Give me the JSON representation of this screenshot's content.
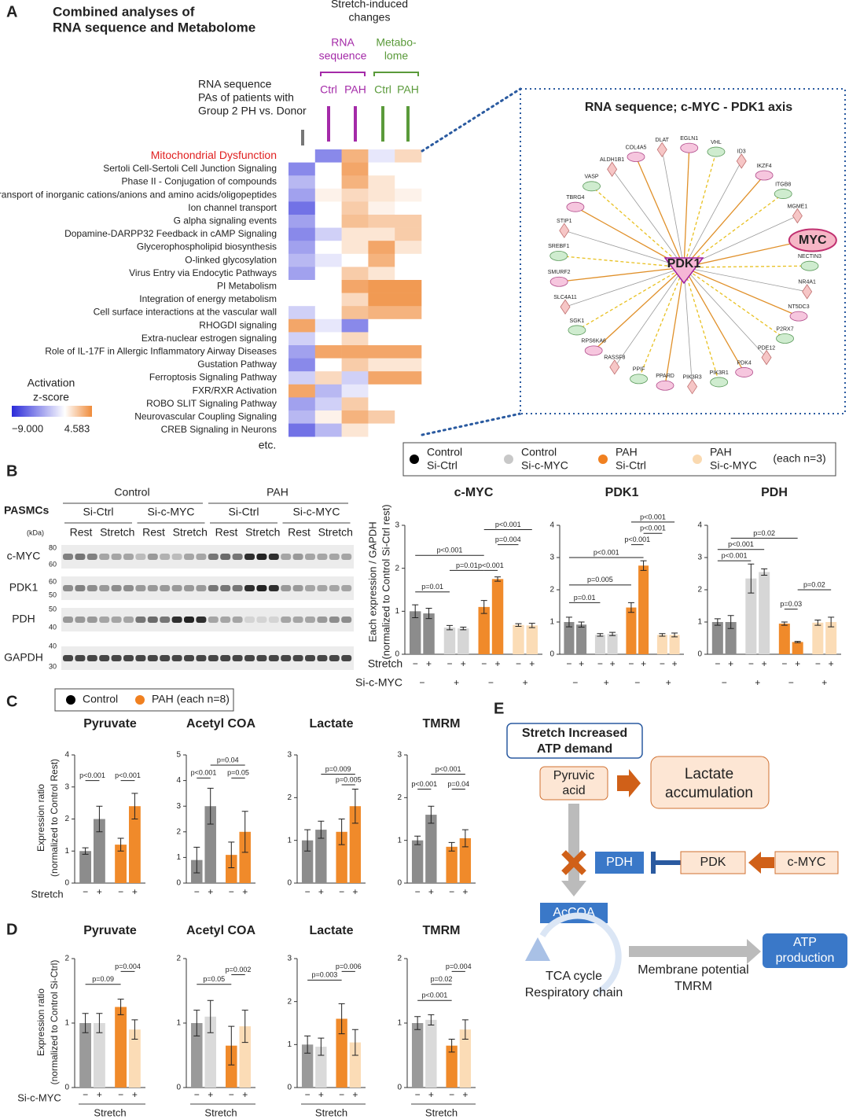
{
  "panel_labels": [
    "A",
    "B",
    "C",
    "D",
    "E"
  ],
  "panel_a": {
    "title": [
      "Combined analyses of",
      "RNA sequence and Metabolome"
    ],
    "header": [
      "Stretch-induced",
      "changes"
    ],
    "groups": [
      {
        "name": [
          "RNA",
          "sequence"
        ],
        "color": "#a42aa8"
      },
      {
        "name": [
          "Metabo-",
          "lome"
        ],
        "color": "#5a9a3a"
      }
    ],
    "columns": [
      "Ctrl",
      "PAH",
      "Ctrl",
      "PAH"
    ],
    "comparison": [
      "RNA sequence",
      "PAs of patients with",
      "Group 2 PH vs. Donor"
    ],
    "rows": [
      "Mitochondrial Dysfunction",
      "Sertoli Cell-Sertoli Cell Junction Signaling",
      "Phase II - Conjugation of compounds",
      "Transport of inorganic cations/anions and amino acids/oligopeptides",
      "Ion channel transport",
      "G alpha signaling events",
      "Dopamine-DARPP32 Feedback in cAMP Signaling",
      "Glycerophospholipid biosynthesis",
      "O-linked glycosylation",
      "Virus Entry via Endocytic Pathways",
      "PI Metabolism",
      "Integration of energy metabolism",
      "Cell surface interactions at the vascular wall",
      "RHOGDI signaling",
      "Extra-nuclear estrogen signaling",
      "Role of IL-17F in Allergic Inflammatory Airway Diseases",
      "Gustation Pathway",
      "Ferroptosis Signaling Pathway",
      "FXR/RXR Activation",
      "ROBO SLIT Signaling Pathway",
      "Neurovascular Coupling Signaling",
      "CREB Signaling in Neurons"
    ],
    "values": [
      [
        0,
        -5,
        3,
        -1,
        1.5
      ],
      [
        -5,
        0,
        3.5,
        0,
        0
      ],
      [
        -3,
        0,
        3,
        1,
        0
      ],
      [
        -4,
        0.5,
        1.5,
        1,
        0.5
      ],
      [
        -6,
        0,
        2,
        0.5,
        0
      ],
      [
        -4,
        0,
        2.5,
        2,
        2
      ],
      [
        -5,
        -2,
        1,
        1,
        2
      ],
      [
        -4,
        0,
        1,
        3.5,
        1
      ],
      [
        -3,
        -1,
        0,
        3,
        0
      ],
      [
        -4,
        0,
        2,
        1,
        0
      ],
      [
        0,
        0,
        3.5,
        4,
        4
      ],
      [
        0,
        0,
        1.5,
        4,
        4
      ],
      [
        -2,
        0,
        2.5,
        3,
        3
      ],
      [
        3.5,
        -1,
        -5,
        0,
        0
      ],
      [
        -2,
        0,
        1.5,
        0,
        0
      ],
      [
        -4,
        3.5,
        3.5,
        3.5,
        3.5
      ],
      [
        -5,
        0,
        2,
        1,
        1
      ],
      [
        -2,
        1.5,
        -2,
        3.5,
        3.5
      ],
      [
        3.5,
        -3,
        -1,
        0,
        0
      ],
      [
        -4,
        -2,
        2,
        0,
        0
      ],
      [
        -3,
        0.5,
        3,
        2,
        0
      ],
      [
        -6,
        -3,
        1,
        0,
        0
      ]
    ],
    "colorscale": {
      "title": [
        "Activation",
        "z-score"
      ],
      "min": {
        "value": -9,
        "label": "−9.000"
      },
      "max": 4.583,
      "colors": [
        "#2b2bd9",
        "#ffffff",
        "#ef8b3a"
      ]
    },
    "footnote": "etc."
  },
  "network": {
    "title": "RNA sequence; c-MYC - PDK1 axis",
    "hub": "PDK1",
    "nodes": [
      "DLAT",
      "EGLN1",
      "VHL",
      "ID3",
      "IKZF4",
      "ITGB8",
      "MGME1",
      "MYC",
      "NECTIN3",
      "NR4A1",
      "NT5DC3",
      "P2RX7",
      "PDE12",
      "PDK4",
      "PIK3R1",
      "PIK3R3",
      "PPARD",
      "PPIF",
      "RASSF8",
      "RPS6KA6",
      "SGK1",
      "SLC4A11",
      "SMURF2",
      "SREBF1",
      "STIP1",
      "TBRG4",
      "VASP",
      "ALDH1B1",
      "COL4A5"
    ]
  },
  "panel_b": {
    "cell": "PASMCs",
    "conditions": [
      "Control",
      "PAH"
    ],
    "sirna_groups": [
      "Si-Ctrl",
      "Si-c-MYC",
      "Si-Ctrl",
      "Si-c-MYC"
    ],
    "treatments": [
      "Rest",
      "Stretch",
      "Rest",
      "Stretch",
      "Rest",
      "Stretch",
      "Rest",
      "Stretch"
    ],
    "kda": "(kDa)",
    "proteins": [
      {
        "name": "c-MYC",
        "markers": [
          80,
          60
        ]
      },
      {
        "name": "PDK1",
        "markers": [
          60,
          50
        ]
      },
      {
        "name": "PDH",
        "markers": [
          50,
          40
        ]
      },
      {
        "name": "GAPDH",
        "markers": [
          40,
          30
        ]
      }
    ],
    "legend": {
      "series": [
        {
          "name": [
            "Control",
            "Si-Ctrl"
          ],
          "color": "#000000"
        },
        {
          "name": [
            "Control",
            "Si-c-MYC"
          ],
          "color": "#c8c8c8"
        },
        {
          "name": [
            "PAH",
            "Si-Ctrl"
          ],
          "color": "#f08020"
        },
        {
          "name": [
            "PAH",
            "Si-c-MYC"
          ],
          "color": "#fad9b0"
        }
      ],
      "note": "(each n=3)"
    },
    "ylabel": [
      "Each expression / GAPDH",
      "(normalized to Control Si-Ctrl rest)"
    ],
    "row_labels": [
      "Stretch",
      "Si-c-MYC"
    ],
    "stretch": [
      "−",
      "+",
      "−",
      "+",
      "−",
      "+",
      "−",
      "+"
    ],
    "sirna": [
      "−",
      "+",
      "−",
      "+"
    ],
    "bar_colors": [
      "#8c8c8c",
      "#8c8c8c",
      "#d6d6d6",
      "#d6d6d6",
      "#f08a2a",
      "#f08a2a",
      "#fbdcb6",
      "#fbdcb6"
    ],
    "charts": [
      {
        "type": "bar",
        "title": "c-MYC",
        "ylim": [
          0,
          3
        ],
        "yticks": [
          0,
          1,
          2,
          3
        ],
        "values": [
          1.0,
          0.95,
          0.62,
          0.6,
          1.1,
          1.75,
          0.68,
          0.67
        ],
        "errors": [
          0.15,
          0.12,
          0.05,
          0.03,
          0.15,
          0.05,
          0.03,
          0.05
        ],
        "p_labels": [
          "p=0.01",
          "p=0.01",
          "p<0.001",
          "p<0.001",
          "p=0.004",
          "p<0.001"
        ]
      },
      {
        "type": "bar",
        "title": "PDK1",
        "ylim": [
          0,
          4
        ],
        "yticks": [
          0,
          1,
          2,
          3,
          4
        ],
        "values": [
          1.0,
          0.92,
          0.6,
          0.63,
          1.45,
          2.75,
          0.6,
          0.6
        ],
        "errors": [
          0.15,
          0.08,
          0.04,
          0.05,
          0.15,
          0.15,
          0.04,
          0.06
        ],
        "p_labels": [
          "p=0.01",
          "p=0.005",
          "p<0.001",
          "p<0.001",
          "p<0.001",
          "p<0.001"
        ]
      },
      {
        "type": "bar",
        "title": "PDH",
        "ylim": [
          0,
          4
        ],
        "yticks": [
          0,
          1,
          2,
          3,
          4
        ],
        "values": [
          1.0,
          1.0,
          2.35,
          2.55,
          0.95,
          0.38,
          0.98,
          1.0
        ],
        "errors": [
          0.1,
          0.2,
          0.45,
          0.1,
          0.05,
          0.02,
          0.08,
          0.15
        ],
        "p_labels": [
          "p<0.001",
          "p<0.001",
          "p=0.02",
          "p=0.03",
          "p=0.02"
        ]
      }
    ]
  },
  "panel_c": {
    "legend": {
      "series": [
        {
          "name": "Control",
          "color": "#000000"
        },
        {
          "name": "PAH (each n=8)",
          "color": "#f08020"
        }
      ]
    },
    "ylabel": [
      "Expression ratio",
      "(normalized to Control Rest)"
    ],
    "row_label": "Stretch",
    "stretch": [
      "−",
      "+",
      "−",
      "+"
    ],
    "bar_colors": [
      "#8c8c8c",
      "#8c8c8c",
      "#f08a2a",
      "#f08a2a"
    ],
    "charts": [
      {
        "type": "bar",
        "title": "Pyruvate",
        "ylim": [
          0,
          4
        ],
        "yticks": [
          0,
          1,
          2,
          3,
          4
        ],
        "values": [
          1.0,
          2.0,
          1.2,
          2.4
        ],
        "errors": [
          0.1,
          0.4,
          0.2,
          0.4
        ],
        "p_labels": [
          "p<0.001",
          "p<0.001"
        ]
      },
      {
        "type": "bar",
        "title": "Acetyl COA",
        "ylim": [
          0,
          5
        ],
        "yticks": [
          0,
          1,
          2,
          3,
          4,
          5
        ],
        "values": [
          0.9,
          3.0,
          1.1,
          2.0
        ],
        "errors": [
          0.5,
          0.7,
          0.5,
          0.8
        ],
        "p_labels": [
          "p<0.001",
          "p=0.04",
          "p=0.05"
        ]
      },
      {
        "type": "bar",
        "title": "Lactate",
        "ylim": [
          0,
          3
        ],
        "yticks": [
          0,
          1,
          2,
          3
        ],
        "values": [
          1.0,
          1.25,
          1.2,
          1.8
        ],
        "errors": [
          0.25,
          0.2,
          0.3,
          0.4
        ],
        "p_labels": [
          "p=0.009",
          "p=0.005"
        ]
      },
      {
        "type": "bar",
        "title": "TMRM",
        "ylim": [
          0,
          3
        ],
        "yticks": [
          0,
          1,
          2,
          3
        ],
        "values": [
          1.0,
          1.6,
          0.85,
          1.05
        ],
        "errors": [
          0.1,
          0.2,
          0.1,
          0.2
        ],
        "p_labels": [
          "p<0.001",
          "p<0.001",
          "p=0.04"
        ]
      }
    ]
  },
  "panel_d": {
    "ylabel": [
      "Expression ratio",
      "(normalized to Control Si-Ctrl)"
    ],
    "row_label": "Si-c-MYC",
    "sirna": [
      "−",
      "+",
      "−",
      "+"
    ],
    "x_label": "Stretch",
    "bar_colors": [
      "#9a9a9a",
      "#dadada",
      "#f08a2a",
      "#fbdcb6"
    ],
    "charts": [
      {
        "type": "bar",
        "title": "Pyruvate",
        "ylim": [
          0,
          2
        ],
        "yticks": [
          0,
          1,
          2
        ],
        "values": [
          1.0,
          1.0,
          1.25,
          0.9
        ],
        "errors": [
          0.15,
          0.15,
          0.12,
          0.15
        ],
        "p_labels": [
          "p=0.09",
          "p=0.004"
        ]
      },
      {
        "type": "bar",
        "title": "Acetyl COA",
        "ylim": [
          0,
          2
        ],
        "yticks": [
          0,
          1,
          2
        ],
        "values": [
          1.0,
          1.1,
          0.65,
          0.95
        ],
        "errors": [
          0.2,
          0.25,
          0.3,
          0.25
        ],
        "p_labels": [
          "p=0.05",
          "p=0.002"
        ]
      },
      {
        "type": "bar",
        "title": "Lactate",
        "ylim": [
          0,
          3
        ],
        "yticks": [
          0,
          1,
          2,
          3
        ],
        "values": [
          1.0,
          0.95,
          1.6,
          1.05
        ],
        "errors": [
          0.2,
          0.2,
          0.35,
          0.3
        ],
        "p_labels": [
          "p=0.003",
          "p=0.006"
        ]
      },
      {
        "type": "bar",
        "title": "TMRM",
        "ylim": [
          0,
          2
        ],
        "yticks": [
          0,
          1,
          2
        ],
        "values": [
          1.0,
          1.05,
          0.65,
          0.9
        ],
        "errors": [
          0.1,
          0.08,
          0.1,
          0.15
        ],
        "p_labels": [
          "p<0.001",
          "p=0.02",
          "p=0.004"
        ]
      }
    ]
  },
  "panel_e": {
    "stretch": [
      "Stretch Increased",
      "ATP demand"
    ],
    "pyruvic": [
      "Pyruvic",
      "acid"
    ],
    "lactate": [
      "Lactate",
      "accumulation"
    ],
    "pdh": "PDH",
    "pdk": "PDK",
    "cmyc": "c-MYC",
    "accoa": "AcCOA",
    "tca": [
      "TCA cycle",
      "Respiratory chain"
    ],
    "membrane": [
      "Membrane potential",
      "TMRM"
    ],
    "atp": [
      "ATP",
      "production"
    ]
  }
}
